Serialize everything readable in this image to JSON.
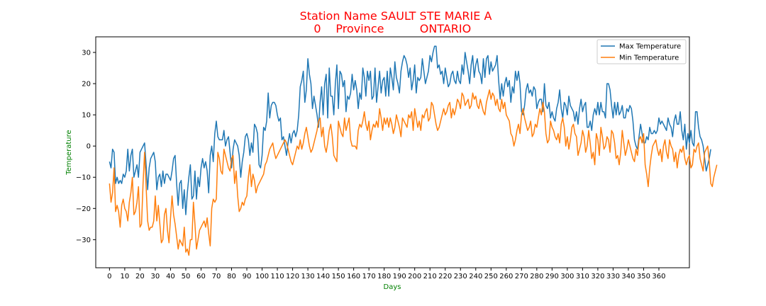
{
  "chart_data": {
    "type": "line",
    "title_line1": "Station Name SAULT STE MARIE A",
    "title_line2_parts": [
      "0",
      "Province",
      "ONTARIO"
    ],
    "title_color": "#ff0000",
    "xlabel": "Days",
    "ylabel": "Temperature",
    "axis_label_color": "#008000",
    "xlim": [
      -9,
      380
    ],
    "ylim": [
      -39,
      35
    ],
    "xticks": [
      0,
      10,
      20,
      30,
      40,
      50,
      60,
      70,
      80,
      90,
      100,
      110,
      120,
      130,
      140,
      150,
      160,
      170,
      180,
      190,
      200,
      210,
      220,
      230,
      240,
      250,
      260,
      270,
      280,
      290,
      300,
      310,
      320,
      330,
      340,
      350,
      360
    ],
    "yticks": [
      -30,
      -20,
      -10,
      0,
      10,
      20,
      30
    ],
    "grid": false,
    "legend": "top-right",
    "series": [
      {
        "name": "Max Temperature",
        "color": "#1f77b4",
        "values": [
          -5,
          -7,
          -1,
          -2,
          -12,
          -10,
          -12,
          -11,
          -12,
          -9,
          -10,
          -8,
          -1,
          -8,
          -3,
          -1,
          -10,
          -8,
          -6,
          -10,
          -2,
          -1,
          0,
          1,
          -6,
          -14,
          -7,
          -4,
          -3,
          -2,
          -5,
          -14,
          -10,
          -9,
          -13,
          -8,
          -12,
          -9,
          -9,
          -10,
          -11,
          -8,
          -4,
          -3,
          -12,
          -19,
          -12,
          -11,
          -20,
          -14,
          -22,
          -15,
          -10,
          -6,
          -17,
          -16,
          -8,
          -17,
          -10,
          -13,
          -7,
          -4,
          -7,
          -5,
          -8,
          -15,
          -3,
          0,
          -5,
          4,
          8,
          3,
          2,
          2,
          2,
          5,
          0,
          2,
          3,
          -2,
          -7,
          -1,
          2,
          1,
          0,
          -3,
          -10,
          -5,
          -2,
          3,
          4,
          2,
          -3,
          1,
          -2,
          7,
          6,
          4,
          -6,
          -7,
          -3,
          6,
          5,
          8,
          17,
          9,
          13,
          14,
          14,
          13,
          10,
          8,
          9,
          2,
          3,
          0,
          -3,
          1,
          4,
          1,
          4,
          5,
          3,
          5,
          10,
          19,
          21,
          24,
          14,
          18,
          28,
          23,
          20,
          12,
          16,
          13,
          10,
          6,
          14,
          19,
          10,
          20,
          23,
          9,
          25,
          16,
          16,
          10,
          20,
          26,
          12,
          24,
          23,
          19,
          21,
          11,
          16,
          15,
          17,
          23,
          18,
          21,
          18,
          12,
          17,
          15,
          25,
          22,
          16,
          24,
          21,
          24,
          15,
          16,
          25,
          14,
          19,
          24,
          17,
          21,
          22,
          16,
          24,
          16,
          25,
          22,
          18,
          27,
          22,
          20,
          17,
          24,
          27,
          29,
          28,
          26,
          22,
          25,
          18,
          21,
          26,
          17,
          22,
          21,
          22,
          28,
          24,
          20,
          22,
          24,
          29,
          27,
          30,
          32,
          32,
          25,
          26,
          23,
          24,
          20,
          25,
          22,
          19,
          20,
          23,
          24,
          21,
          20,
          24,
          21,
          20,
          26,
          23,
          30,
          27,
          24,
          20,
          26,
          29,
          22,
          26,
          28,
          24,
          23,
          20,
          28,
          22,
          28,
          29,
          23,
          27,
          24,
          25,
          26,
          29,
          21,
          15,
          20,
          16,
          20,
          22,
          19,
          21,
          14,
          19,
          17,
          24,
          21,
          24,
          20,
          11,
          10,
          13,
          18,
          20,
          17,
          18,
          16,
          19,
          18,
          12,
          14,
          15,
          15,
          11,
          20,
          13,
          12,
          14,
          9,
          11,
          9,
          8,
          12,
          14,
          18,
          12,
          9,
          14,
          13,
          10,
          16,
          13,
          12,
          11,
          8,
          11,
          7,
          12,
          15,
          11,
          13,
          14,
          6,
          6,
          8,
          5,
          10,
          12,
          10,
          14,
          10,
          14,
          11,
          11,
          9,
          20,
          20,
          18,
          13,
          9,
          14,
          10,
          14,
          10,
          11,
          13,
          9,
          9,
          12,
          11,
          13,
          12,
          8,
          2,
          0,
          -1,
          3,
          7,
          4,
          1,
          1,
          3,
          2,
          6,
          4,
          4,
          5,
          4,
          5,
          9,
          7,
          8,
          7,
          6,
          5,
          9,
          7,
          6,
          3,
          8,
          10,
          7,
          7,
          11,
          5,
          2,
          7,
          -1,
          4,
          1,
          5,
          1,
          0,
          11,
          11,
          6,
          3,
          2,
          0,
          -4,
          -8,
          -6,
          -4,
          -1
        ]
      },
      {
        "name": "Min Temperature",
        "color": "#ff7f0e",
        "values": [
          -12,
          -18,
          -15,
          -7,
          -21,
          -19,
          -21,
          -26,
          -19,
          -17,
          -20,
          -21,
          -24,
          -18,
          -15,
          -10,
          -22,
          -21,
          -18,
          -13,
          -26,
          -25,
          -12,
          -2,
          -13,
          -24,
          -27,
          -26,
          -26,
          -24,
          -16,
          -24,
          -19,
          -25,
          -31,
          -30,
          -22,
          -20,
          -27,
          -31,
          -23,
          -16,
          -22,
          -25,
          -29,
          -33,
          -30,
          -31,
          -32,
          -26,
          -34,
          -33,
          -35,
          -30,
          -30,
          -18,
          -25,
          -33,
          -30,
          -27,
          -26,
          -25,
          -24,
          -26,
          -23,
          -28,
          -32,
          -20,
          -17,
          -18,
          -17,
          -2,
          -4,
          -8,
          -9,
          -1,
          -3,
          -5,
          -7,
          -8,
          -4,
          -3,
          -12,
          -8,
          -16,
          -21,
          -20,
          -18,
          -19,
          -17,
          -16,
          -10,
          -6,
          -13,
          -9,
          -11,
          -15,
          -13,
          -12,
          -11,
          -10,
          -9,
          -6,
          -5,
          -3,
          -1,
          0,
          1,
          -2,
          -4,
          -3,
          -2,
          -1,
          0,
          1,
          2,
          1,
          -1,
          -3,
          -5,
          -6,
          -4,
          -2,
          0,
          -1,
          2,
          -1,
          1,
          4,
          6,
          3,
          0,
          -2,
          -1,
          1,
          3,
          5,
          8,
          9,
          3,
          6,
          0,
          -2,
          1,
          5,
          7,
          3,
          -3,
          -4,
          -5,
          8,
          6,
          4,
          3,
          9,
          5,
          7,
          9,
          2,
          0,
          0,
          0,
          -1,
          5,
          7,
          6,
          8,
          11,
          7,
          5,
          8,
          2,
          5,
          7,
          6,
          8,
          6,
          12,
          9,
          5,
          9,
          7,
          9,
          6,
          9,
          7,
          4,
          6,
          10,
          8,
          6,
          3,
          9,
          8,
          7,
          6,
          10,
          9,
          11,
          5,
          12,
          9,
          6,
          8,
          5,
          10,
          9,
          11,
          12,
          8,
          9,
          14,
          13,
          10,
          7,
          5,
          6,
          8,
          10,
          12,
          10,
          11,
          13,
          14,
          9,
          12,
          10,
          12,
          15,
          14,
          12,
          17,
          16,
          13,
          14,
          15,
          12,
          13,
          17,
          15,
          16,
          13,
          12,
          15,
          13,
          11,
          10,
          14,
          16,
          18,
          15,
          17,
          16,
          13,
          15,
          12,
          11,
          15,
          12,
          14,
          10,
          9,
          8,
          4,
          3,
          0,
          2,
          5,
          7,
          4,
          10,
          12,
          9,
          7,
          5,
          6,
          8,
          3,
          4,
          7,
          6,
          9,
          12,
          10,
          14,
          11,
          4,
          1,
          2,
          8,
          6,
          5,
          3,
          2,
          4,
          1,
          7,
          9,
          6,
          0,
          3,
          -1,
          2,
          6,
          7,
          4,
          3,
          -3,
          -1,
          1,
          5,
          3,
          -2,
          0,
          5,
          1,
          -4,
          -2,
          -6,
          4,
          2,
          -3,
          6,
          3,
          -1,
          0,
          3,
          2,
          -2,
          5,
          4,
          1,
          -4,
          -3,
          -6,
          -2,
          5,
          1,
          -3,
          -1,
          2,
          0,
          -2,
          -4,
          -5,
          -1,
          -3,
          2,
          3,
          1,
          4,
          -6,
          -9,
          -13,
          -7,
          -3,
          0,
          1,
          2,
          -1,
          -3,
          -1,
          -5,
          0,
          2,
          -2,
          -4,
          2,
          0,
          -1,
          -5,
          -2,
          -7,
          -3,
          -1,
          -2,
          0,
          -4,
          -6,
          -4,
          -3,
          -7,
          -6,
          -1,
          -2,
          0,
          1,
          -4,
          -6,
          -8,
          -2,
          -1,
          0,
          -5,
          -12,
          -13,
          -10,
          -8,
          -6
        ]
      }
    ]
  }
}
